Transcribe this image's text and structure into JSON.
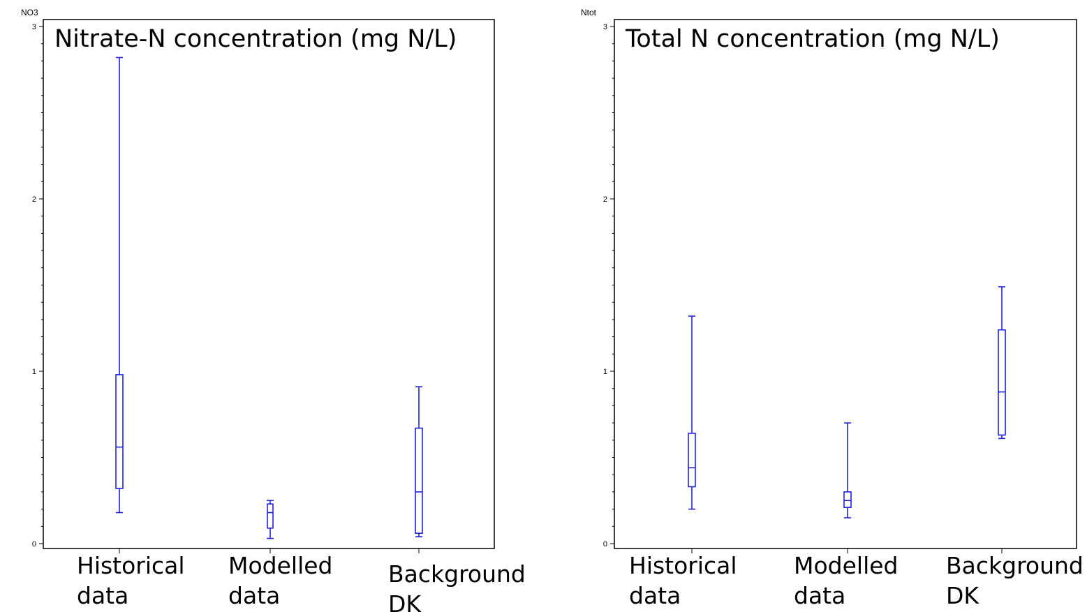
{
  "chart_data": [
    {
      "type": "box",
      "title": "Nitrate-N concentration (mg N/L)",
      "ylabel": "NO3",
      "ylim": [
        0,
        3
      ],
      "yticks": [
        "0",
        "1",
        "2",
        "3"
      ],
      "categories": [
        [
          "Historical",
          "data"
        ],
        [
          "Modelled",
          "data"
        ],
        [
          "Background",
          "DK"
        ]
      ],
      "boxes": [
        {
          "whisker_low": 0.18,
          "q1": 0.32,
          "median": 0.56,
          "q3": 0.98,
          "whisker_high": 2.82
        },
        {
          "whisker_low": 0.03,
          "q1": 0.09,
          "median": 0.18,
          "q3": 0.23,
          "whisker_high": 0.25
        },
        {
          "whisker_low": 0.04,
          "q1": 0.06,
          "median": 0.3,
          "q3": 0.67,
          "whisker_high": 0.91
        }
      ],
      "color": "#2222dd"
    },
    {
      "type": "box",
      "title": "Total N concentration (mg N/L)",
      "ylabel": "Ntot",
      "ylim": [
        0,
        3
      ],
      "yticks": [
        "0",
        "1",
        "2",
        "3"
      ],
      "categories": [
        [
          "Historical",
          "data"
        ],
        [
          "Modelled",
          "data"
        ],
        [
          "Background",
          "DK"
        ]
      ],
      "boxes": [
        {
          "whisker_low": 0.2,
          "q1": 0.33,
          "median": 0.44,
          "q3": 0.64,
          "whisker_high": 1.32
        },
        {
          "whisker_low": 0.15,
          "q1": 0.21,
          "median": 0.25,
          "q3": 0.3,
          "whisker_high": 0.7
        },
        {
          "whisker_low": 0.61,
          "q1": 0.63,
          "median": 0.88,
          "q3": 1.24,
          "whisker_high": 1.49
        }
      ],
      "color": "#2222dd"
    }
  ]
}
